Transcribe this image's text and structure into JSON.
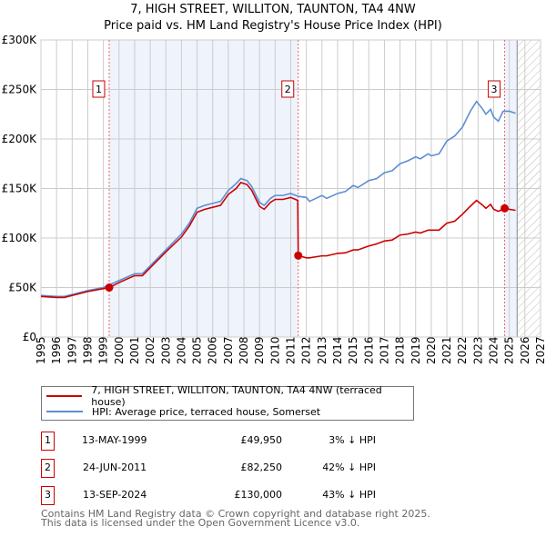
{
  "chart_data": {
    "type": "line",
    "title": "7, HIGH STREET, WILLITON, TAUNTON, TA4 4NW",
    "subtitle": "Price paid vs. HM Land Registry's House Price Index (HPI)",
    "xlim": [
      1995,
      2027
    ],
    "ylim": [
      0,
      300000
    ],
    "x_ticks": [
      "1995",
      "1996",
      "1997",
      "1998",
      "1999",
      "2000",
      "2001",
      "2002",
      "2003",
      "2004",
      "2005",
      "2006",
      "2007",
      "2008",
      "2009",
      "2010",
      "2011",
      "2012",
      "2013",
      "2014",
      "2015",
      "2016",
      "2017",
      "2018",
      "2019",
      "2020",
      "2021",
      "2022",
      "2023",
      "2024",
      "2025",
      "2026",
      "2027"
    ],
    "y_ticks": [
      {
        "v": 0,
        "label": "£0"
      },
      {
        "v": 50000,
        "label": "£50K"
      },
      {
        "v": 100000,
        "label": "£100K"
      },
      {
        "v": 150000,
        "label": "£150K"
      },
      {
        "v": 200000,
        "label": "£200K"
      },
      {
        "v": 250000,
        "label": "£250K"
      },
      {
        "v": 300000,
        "label": "£300K"
      }
    ],
    "series": [
      {
        "name": "7, HIGH STREET, WILLITON, TAUNTON, TA4 4NW (terraced house)",
        "color": "#cc0000",
        "x": [
          1995,
          1996,
          1996.5,
          1997,
          1998,
          1999.37,
          2000,
          2001,
          2001.5,
          2002,
          2003,
          2004,
          2004.5,
          2005,
          2005.5,
          2006,
          2006.5,
          2007,
          2007.5,
          2007.8,
          2008.2,
          2008.5,
          2009,
          2009.3,
          2009.7,
          2010,
          2010.5,
          2011,
          2011.45,
          2011.48,
          2012,
          2012.2,
          2013,
          2013.3,
          2014,
          2014.5,
          2015,
          2015.3,
          2016,
          2016.5,
          2017,
          2017.5,
          2018,
          2018.5,
          2019,
          2019.3,
          2019.8,
          2020,
          2020.5,
          2021,
          2021.5,
          2022,
          2022.5,
          2022.9,
          2023.3,
          2023.5,
          2023.8,
          2024,
          2024.3,
          2024.7,
          2025,
          2025.4
        ],
        "y": [
          41000,
          40000,
          40000,
          42000,
          46000,
          49950,
          55000,
          62000,
          62000,
          70000,
          86000,
          101000,
          112000,
          126000,
          129000,
          131000,
          133000,
          144000,
          150000,
          156000,
          154000,
          148000,
          132000,
          129000,
          136000,
          139000,
          139000,
          141000,
          138000,
          82250,
          80000,
          80000,
          82000,
          82000,
          84500,
          85000,
          88000,
          88000,
          92000,
          94000,
          97000,
          98000,
          103000,
          104000,
          106000,
          105000,
          108000,
          108000,
          108000,
          115000,
          117000,
          124000,
          132000,
          138000,
          133000,
          130000,
          134000,
          129000,
          127000,
          130000,
          129000,
          128000
        ]
      },
      {
        "name": "HPI: Average price, terraced house, Somerset",
        "color": "#5b8fd4",
        "x": [
          1995,
          1996,
          1996.5,
          1997,
          1998,
          1999,
          2000,
          2001,
          2001.5,
          2002,
          2003,
          2004,
          2004.5,
          2005,
          2005.5,
          2006,
          2006.5,
          2007,
          2007.5,
          2007.8,
          2008.2,
          2008.5,
          2009,
          2009.3,
          2009.7,
          2010,
          2010.5,
          2011,
          2011.5,
          2012,
          2012.2,
          2013,
          2013.3,
          2014,
          2014.5,
          2015,
          2015.3,
          2016,
          2016.5,
          2017,
          2017.5,
          2018,
          2018.5,
          2019,
          2019.3,
          2019.8,
          2020,
          2020.5,
          2021,
          2021.5,
          2022,
          2022.5,
          2022.9,
          2023.3,
          2023.5,
          2023.8,
          2024,
          2024.3,
          2024.6,
          2025,
          2025.4
        ],
        "y": [
          42000,
          41000,
          41000,
          43000,
          47000,
          50000,
          57000,
          64000,
          64000,
          72000,
          88000,
          104000,
          115000,
          130000,
          133000,
          135000,
          137000,
          148000,
          155000,
          160000,
          158000,
          152000,
          136000,
          133000,
          140000,
          143000,
          143000,
          145000,
          142000,
          141000,
          137000,
          143000,
          140000,
          145000,
          147000,
          153000,
          151000,
          158000,
          160000,
          166000,
          168000,
          175000,
          178000,
          182000,
          180000,
          185000,
          183000,
          185000,
          198000,
          203000,
          212000,
          228000,
          238000,
          230000,
          225000,
          230000,
          222000,
          218000,
          228000,
          228000,
          226000
        ]
      }
    ],
    "sales": [
      {
        "id": "1",
        "x": 1999.37,
        "date": "13-MAY-1999",
        "price": 49950,
        "price_label": "£49,950",
        "hpi_label": "3% ↓ HPI"
      },
      {
        "id": "2",
        "x": 2011.48,
        "date": "24-JUN-2011",
        "price": 82250,
        "price_label": "£82,250",
        "hpi_label": "42% ↓ HPI"
      },
      {
        "id": "3",
        "x": 2024.7,
        "date": "13-SEP-2024",
        "price": 130000,
        "price_label": "£130,000",
        "hpi_label": "43% ↓ HPI"
      }
    ],
    "forecast_start": 2025.5
  },
  "footer": {
    "line1": "Contains HM Land Registry data © Crown copyright and database right 2025.",
    "line2": "This data is licensed under the Open Government Licence v3.0."
  }
}
